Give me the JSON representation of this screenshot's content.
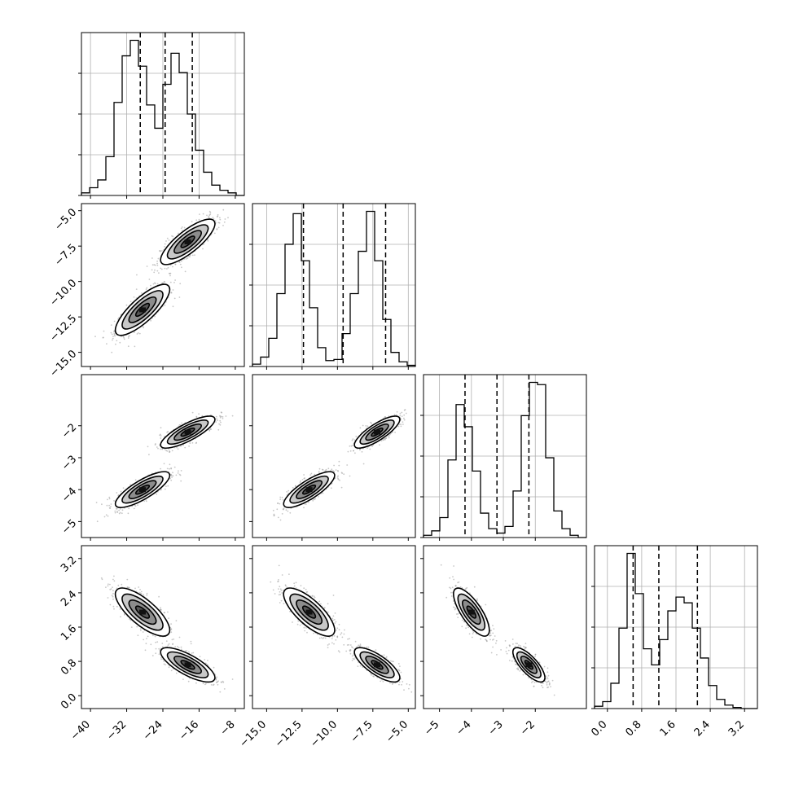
{
  "chart_data": {
    "type": "corner",
    "title": "",
    "parameters": [
      {
        "xlim": [
          -42,
          -6
        ],
        "ticks": [
          -40,
          -32,
          -24,
          -16,
          -8
        ],
        "tick_labels": [
          "−40",
          "−32",
          "−24",
          "−16",
          "−8"
        ],
        "quantiles": [
          -29,
          -23.5,
          -17.5
        ]
      },
      {
        "xlim": [
          -16,
          -4.5
        ],
        "ticks": [
          -15.0,
          -12.5,
          -10.0,
          -7.5,
          -5.0
        ],
        "tick_labels": [
          "−15.0",
          "−12.5",
          "−10.0",
          "−7.5",
          "−5.0"
        ],
        "quantiles": [
          -12.4,
          -9.6,
          -6.6
        ]
      },
      {
        "xlim": [
          -5.5,
          -0.4
        ],
        "ticks": [
          -5,
          -4,
          -3,
          -2
        ],
        "tick_labels": [
          "−5",
          "−4",
          "−3",
          "−2"
        ],
        "quantiles": [
          -4.2,
          -3.2,
          -2.2
        ]
      },
      {
        "xlim": [
          -0.3,
          3.5
        ],
        "ticks": [
          0.0,
          0.8,
          1.6,
          2.4,
          3.2
        ],
        "tick_labels": [
          "0.0",
          "0.8",
          "1.6",
          "2.4",
          "3.2"
        ],
        "quantiles": [
          0.6,
          1.2,
          2.1
        ]
      }
    ],
    "modes": [
      {
        "means": [
          -28.5,
          -12.0,
          -4.0,
          1.95
        ],
        "sd": [
          3.0,
          0.9,
          0.28,
          0.28
        ]
      },
      {
        "means": [
          -18.5,
          -7.2,
          -2.2,
          0.72
        ],
        "sd": [
          3.0,
          0.8,
          0.25,
          0.2
        ]
      }
    ],
    "histograms": [
      {
        "edges_range": [
          -42,
          -6
        ],
        "bins": 20,
        "counts": [
          2,
          6,
          12,
          30,
          72,
          108,
          120,
          100,
          70,
          52,
          86,
          110,
          95,
          63,
          35,
          18,
          8,
          4,
          2,
          0
        ]
      },
      {
        "edges_range": [
          -16,
          -4.5
        ],
        "bins": 20,
        "counts": [
          2,
          8,
          24,
          62,
          104,
          130,
          90,
          50,
          16,
          5,
          6,
          28,
          62,
          98,
          132,
          90,
          40,
          12,
          4,
          1
        ]
      },
      {
        "edges_range": [
          -5.5,
          -0.4
        ],
        "bins": 20,
        "counts": [
          2,
          6,
          18,
          70,
          120,
          100,
          60,
          22,
          8,
          4,
          10,
          42,
          110,
          140,
          138,
          72,
          24,
          8,
          2,
          0
        ]
      },
      {
        "edges_range": [
          -0.3,
          3.5
        ],
        "bins": 20,
        "counts": [
          2,
          6,
          22,
          70,
          135,
          100,
          52,
          38,
          60,
          85,
          97,
          92,
          70,
          44,
          20,
          8,
          3,
          1,
          0,
          0
        ]
      }
    ],
    "scatter_n": 700
  }
}
